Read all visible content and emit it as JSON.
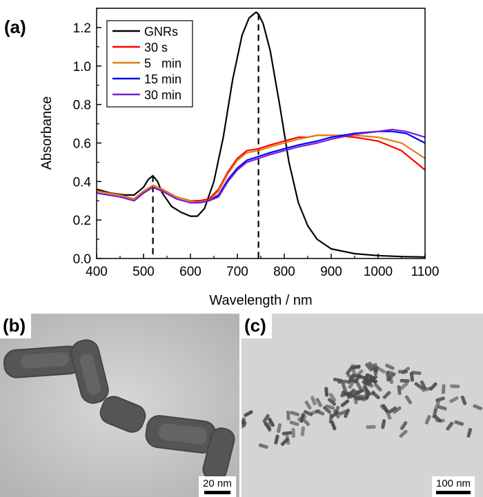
{
  "chart_data": {
    "type": "line",
    "panel_label": "(a)",
    "xlabel": "Wavelength / nm",
    "ylabel": "Absorbance",
    "xlim": [
      400,
      1100
    ],
    "ylim": [
      0.0,
      1.3
    ],
    "xticks": [
      400,
      500,
      600,
      700,
      800,
      900,
      1000,
      1100
    ],
    "yticks": [
      "0.0",
      "0.2",
      "0.4",
      "0.6",
      "0.8",
      "1.0",
      "1.2"
    ],
    "grid": false,
    "legend_position": "top-left",
    "reference_lines_x": [
      520,
      745
    ],
    "series": [
      {
        "name": "GNRs",
        "color": "#000000",
        "x": [
          400,
          430,
          460,
          480,
          500,
          510,
          520,
          530,
          540,
          560,
          580,
          600,
          615,
          630,
          650,
          670,
          690,
          710,
          725,
          740,
          745,
          755,
          770,
          790,
          810,
          830,
          850,
          870,
          900,
          950,
          1000,
          1050,
          1100
        ],
        "y": [
          0.36,
          0.34,
          0.33,
          0.33,
          0.37,
          0.41,
          0.43,
          0.4,
          0.34,
          0.27,
          0.24,
          0.22,
          0.22,
          0.26,
          0.4,
          0.63,
          0.93,
          1.16,
          1.25,
          1.28,
          1.27,
          1.22,
          1.08,
          0.8,
          0.5,
          0.29,
          0.17,
          0.1,
          0.05,
          0.025,
          0.015,
          0.01,
          0.008
        ]
      },
      {
        "name": "30 s",
        "color": "#ff0000",
        "x": [
          400,
          450,
          480,
          500,
          520,
          540,
          570,
          600,
          620,
          640,
          660,
          680,
          700,
          720,
          745,
          770,
          800,
          830,
          850,
          870,
          900,
          950,
          1000,
          1050,
          1100
        ],
        "y": [
          0.35,
          0.33,
          0.31,
          0.35,
          0.38,
          0.36,
          0.32,
          0.3,
          0.3,
          0.31,
          0.36,
          0.45,
          0.52,
          0.56,
          0.57,
          0.59,
          0.61,
          0.63,
          0.63,
          0.64,
          0.64,
          0.63,
          0.61,
          0.56,
          0.46
        ]
      },
      {
        "name": "5   min",
        "color": "#e07f10",
        "x": [
          400,
          450,
          480,
          500,
          520,
          540,
          570,
          600,
          620,
          640,
          660,
          680,
          700,
          720,
          745,
          770,
          800,
          830,
          850,
          870,
          900,
          950,
          1000,
          1050,
          1100
        ],
        "y": [
          0.35,
          0.33,
          0.31,
          0.35,
          0.38,
          0.36,
          0.32,
          0.3,
          0.29,
          0.3,
          0.35,
          0.44,
          0.51,
          0.55,
          0.56,
          0.58,
          0.6,
          0.62,
          0.63,
          0.64,
          0.64,
          0.64,
          0.63,
          0.6,
          0.52
        ]
      },
      {
        "name": "15 min",
        "color": "#0000ff",
        "x": [
          400,
          450,
          480,
          500,
          520,
          540,
          570,
          600,
          620,
          640,
          660,
          680,
          700,
          720,
          745,
          770,
          800,
          830,
          850,
          870,
          900,
          950,
          1000,
          1030,
          1060,
          1100
        ],
        "y": [
          0.34,
          0.32,
          0.3,
          0.34,
          0.37,
          0.35,
          0.31,
          0.29,
          0.29,
          0.3,
          0.33,
          0.41,
          0.47,
          0.51,
          0.53,
          0.55,
          0.57,
          0.59,
          0.6,
          0.61,
          0.63,
          0.65,
          0.66,
          0.66,
          0.65,
          0.6
        ]
      },
      {
        "name": "30 min",
        "color": "#7a1fd0",
        "x": [
          400,
          450,
          480,
          500,
          520,
          540,
          570,
          600,
          620,
          640,
          660,
          680,
          700,
          720,
          745,
          770,
          800,
          830,
          850,
          870,
          900,
          950,
          1000,
          1030,
          1060,
          1100
        ],
        "y": [
          0.34,
          0.32,
          0.3,
          0.34,
          0.37,
          0.35,
          0.31,
          0.29,
          0.29,
          0.3,
          0.32,
          0.4,
          0.46,
          0.5,
          0.52,
          0.54,
          0.56,
          0.58,
          0.59,
          0.6,
          0.62,
          0.645,
          0.66,
          0.67,
          0.66,
          0.63
        ]
      }
    ]
  },
  "panel_b": {
    "label": "(b)",
    "scale_text": "20 nm"
  },
  "panel_c": {
    "label": "(c)",
    "scale_text": "100 nm"
  }
}
